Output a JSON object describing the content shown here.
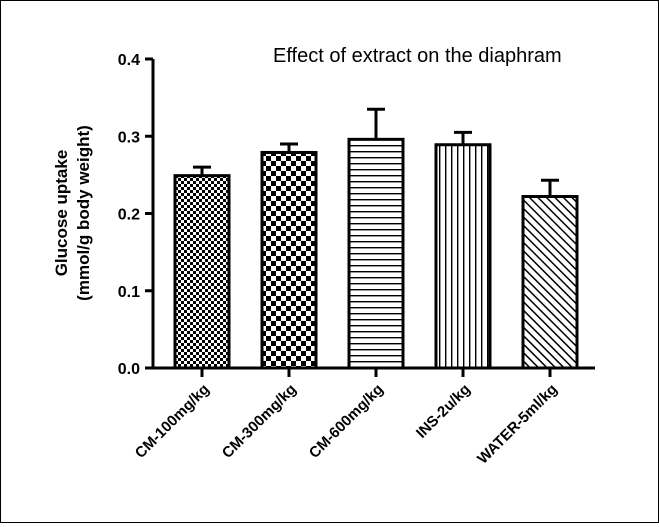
{
  "chart_data": {
    "type": "bar",
    "title": "Effect of extract on the diaphram",
    "ylabel_line1": "Glucose uptake",
    "ylabel_line2": "(mmol/g body weight)",
    "xlabel": "",
    "ylim": [
      0,
      0.4
    ],
    "yticks": [
      "0.0",
      "0.1",
      "0.2",
      "0.3",
      "0.4"
    ],
    "ytick_values": [
      0,
      0.1,
      0.2,
      0.3,
      0.4
    ],
    "categories": [
      "CM-100mg/kg",
      "CM-300mg/kg",
      "CM-600mg/kg",
      "INS-2u/kg",
      "WATER-5ml/kg"
    ],
    "values": [
      0.249,
      0.279,
      0.296,
      0.289,
      0.222
    ],
    "errors": [
      0.011,
      0.011,
      0.039,
      0.016,
      0.021
    ],
    "patterns": [
      "fine-checker",
      "checker",
      "horizontal-lines",
      "vertical-lines",
      "diagonal-lines"
    ],
    "grid": false,
    "bar_fill_color": "#ffffff",
    "line_color": "#000000"
  }
}
